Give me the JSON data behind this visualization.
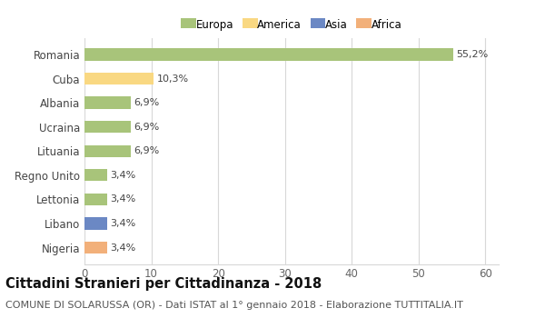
{
  "categories": [
    "Nigeria",
    "Libano",
    "Lettonia",
    "Regno Unito",
    "Lituania",
    "Ucraina",
    "Albania",
    "Cuba",
    "Romania"
  ],
  "values": [
    3.4,
    3.4,
    3.4,
    3.4,
    6.9,
    6.9,
    6.9,
    10.3,
    55.2
  ],
  "labels": [
    "3,4%",
    "3,4%",
    "3,4%",
    "3,4%",
    "6,9%",
    "6,9%",
    "6,9%",
    "10,3%",
    "55,2%"
  ],
  "colors": [
    "#f2b07a",
    "#6b88c4",
    "#a8c47a",
    "#a8c47a",
    "#a8c47a",
    "#a8c47a",
    "#a8c47a",
    "#f9d882",
    "#a8c47a"
  ],
  "legend_labels": [
    "Europa",
    "America",
    "Asia",
    "Africa"
  ],
  "legend_colors": [
    "#a8c47a",
    "#f9d882",
    "#6b88c4",
    "#f2b07a"
  ],
  "title": "Cittadini Stranieri per Cittadinanza - 2018",
  "subtitle": "COMUNE DI SOLARUSSA (OR) - Dati ISTAT al 1° gennaio 2018 - Elaborazione TUTTITALIA.IT",
  "xlim": [
    0,
    62
  ],
  "xticks": [
    0,
    10,
    20,
    30,
    40,
    50,
    60
  ],
  "background_color": "#ffffff",
  "grid_color": "#d8d8d8",
  "bar_height": 0.5,
  "title_fontsize": 10.5,
  "subtitle_fontsize": 8,
  "label_fontsize": 8,
  "tick_fontsize": 8.5,
  "legend_fontsize": 8.5
}
